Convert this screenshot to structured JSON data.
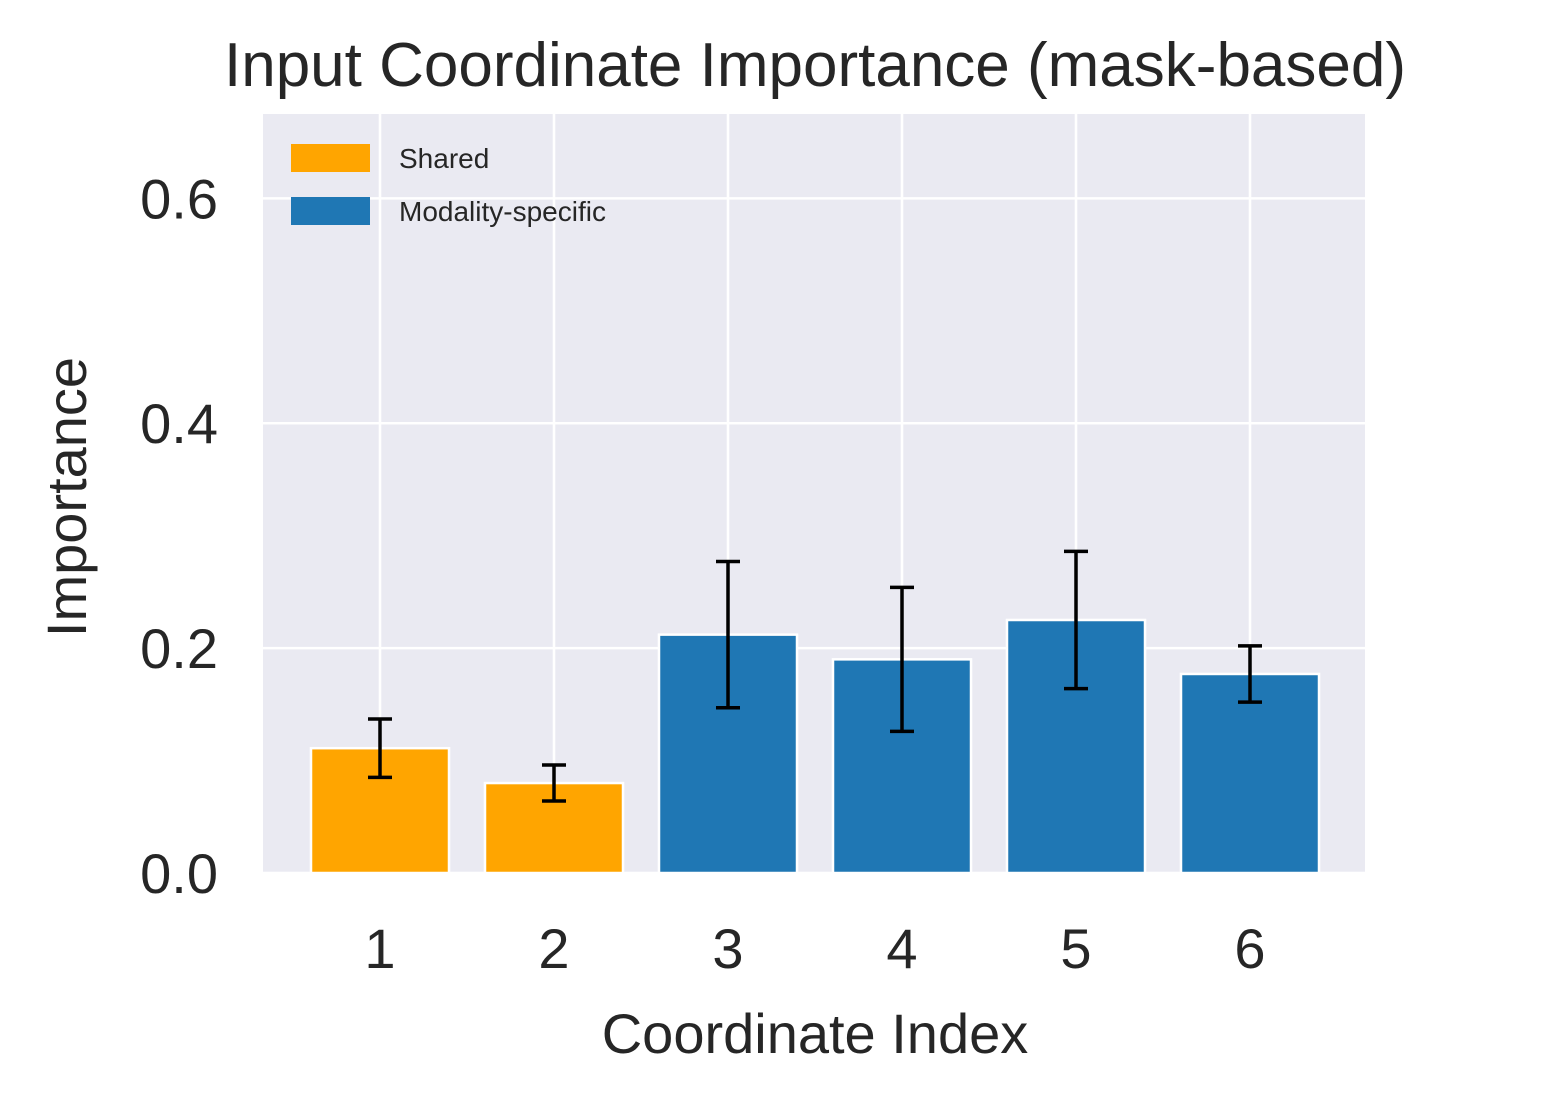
{
  "chart_data": {
    "type": "bar",
    "title": "Input Coordinate Importance (mask-based)",
    "xlabel": "Coordinate Index",
    "ylabel": "Importance",
    "categories": [
      "1",
      "2",
      "3",
      "4",
      "5",
      "6"
    ],
    "values": [
      0.111,
      0.08,
      0.212,
      0.19,
      0.225,
      0.177
    ],
    "errors": [
      0.026,
      0.016,
      0.065,
      0.064,
      0.061,
      0.025
    ],
    "groups": [
      "Shared",
      "Shared",
      "Modality-specific",
      "Modality-specific",
      "Modality-specific",
      "Modality-specific"
    ],
    "ylim": [
      0,
      0.675
    ],
    "yticks": [
      0.0,
      0.2,
      0.4,
      0.6
    ],
    "ytick_labels": [
      "0.0",
      "0.2",
      "0.4",
      "0.6"
    ],
    "grid": true,
    "legend": {
      "placement": "top-left",
      "entries": [
        {
          "label": "Shared",
          "color": "#ffa500"
        },
        {
          "label": "Modality-specific",
          "color": "#1f77b4"
        }
      ]
    },
    "colors": {
      "Shared": "#ffa500",
      "Modality-specific": "#1f77b4",
      "plot_background": "#eaeaf2",
      "grid": "#ffffff",
      "error_bar": "#000000"
    }
  }
}
